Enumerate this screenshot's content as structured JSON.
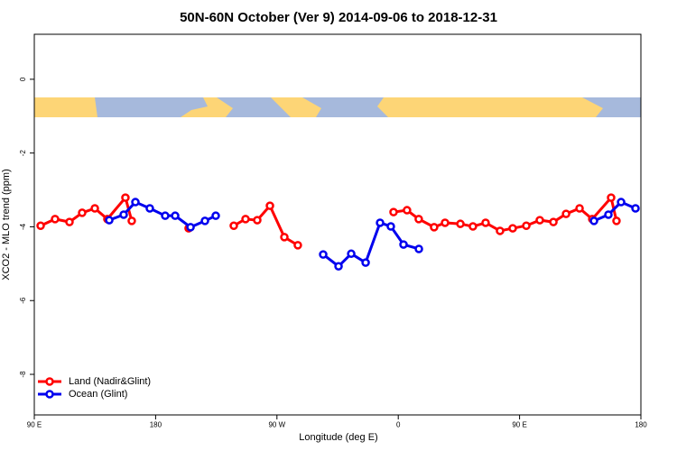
{
  "chart_data": {
    "type": "line",
    "title": "50N-60N October (Ver 9)   2014-09-06 to 2018-12-31",
    "x_label": "Longitude (deg E)",
    "y_label": "XCO2 - MLO trend (ppm)",
    "xlim": [
      90,
      540
    ],
    "xticks": [
      {
        "value": 90,
        "label": "90 E"
      },
      180,
      {
        "value": 270,
        "label": "90 W"
      },
      {
        "value": 360,
        "label": "0"
      },
      {
        "value": 450,
        "label": "90 E"
      },
      {
        "value": 540,
        "label": "180"
      }
    ],
    "ylim": [
      -9.1,
      1.22
    ],
    "yticks": [
      0,
      -2,
      -4,
      -6,
      -8
    ],
    "legend": "bottom-left",
    "series": [
      {
        "name": "Land (Nadir&Glint)",
        "color": "#ff0000",
        "x": [
          94.7,
          105.4,
          116.1,
          125.5,
          134.9,
          144.2,
          157.6,
          162.3,
          183,
          204.5,
          220,
          238.0,
          246.7,
          255.4,
          264.8,
          275.5,
          285.5,
          320,
          356.5,
          366.5,
          375.2,
          386.6,
          394.7,
          406.1,
          415.4,
          424.8,
          435.5,
          444.9,
          455.0,
          465.0,
          475.1,
          484.5,
          494.5,
          503.9,
          517.9,
          521.9
        ],
        "values": [
          -3.97,
          -3.79,
          -3.87,
          -3.62,
          -3.5,
          -3.79,
          -3.21,
          -3.84,
          null,
          -4.04,
          null,
          -3.97,
          -3.79,
          -3.82,
          -3.43,
          -4.28,
          -4.5,
          null,
          -3.6,
          -3.55,
          -3.79,
          -4.01,
          -3.89,
          -3.92,
          -3.99,
          -3.89,
          -4.11,
          -4.04,
          -3.97,
          -3.82,
          -3.87,
          -3.65,
          -3.5,
          -3.79,
          -3.21,
          -3.84
        ]
      },
      {
        "name": "Ocean (Glint)",
        "color": "#0000ee",
        "x": [
          145.6,
          156.3,
          165.0,
          175.7,
          187.1,
          194.5,
          205.9,
          216.6,
          224.6,
          260,
          304.3,
          315.7,
          325.1,
          335.8,
          346.5,
          354.5,
          363.9,
          375.3,
          440,
          505.2,
          515.9,
          525.3,
          536.0
        ],
        "values": [
          -3.82,
          -3.67,
          -3.33,
          -3.5,
          -3.7,
          -3.7,
          -4.01,
          -3.84,
          -3.7,
          null,
          -4.75,
          -5.07,
          -4.73,
          -4.97,
          -3.89,
          -3.99,
          -4.48,
          -4.6,
          null,
          -3.84,
          -3.67,
          -3.33,
          -3.5
        ]
      }
    ]
  }
}
